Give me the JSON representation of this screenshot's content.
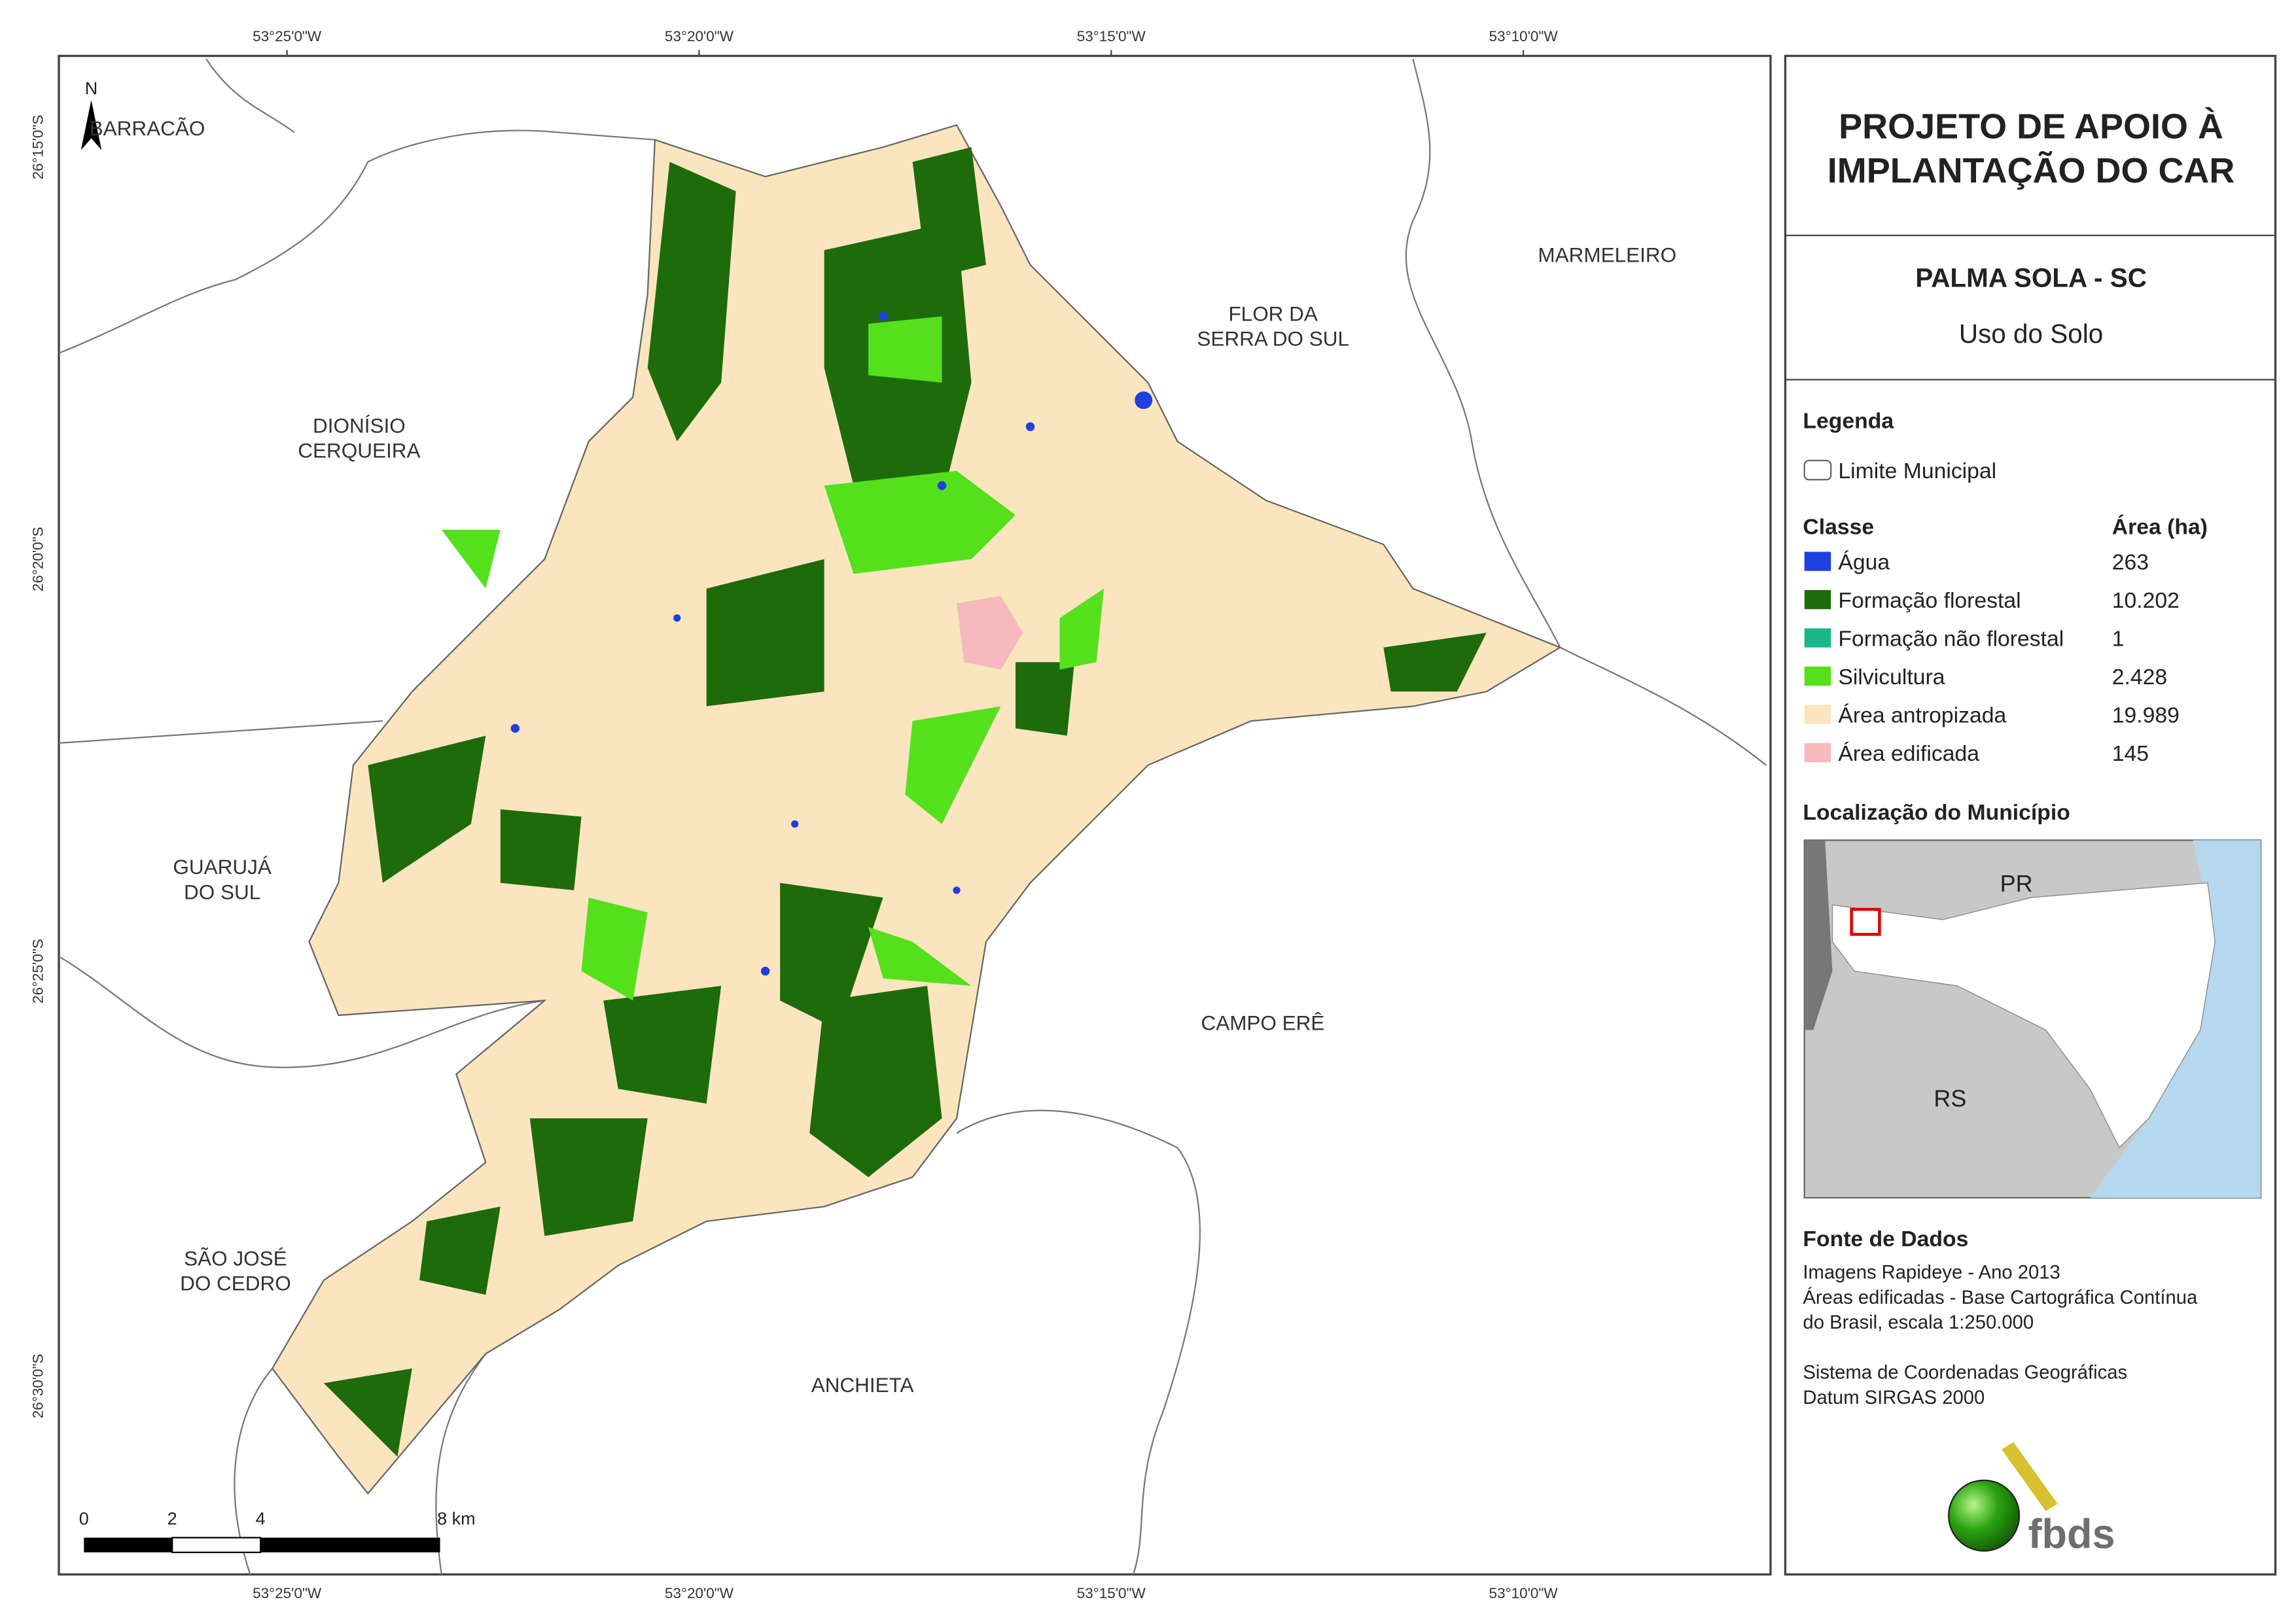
{
  "header": {
    "title_line1": "PROJETO DE APOIO À",
    "title_line2": "IMPLANTAÇÃO DO CAR",
    "municipality": "PALMA SOLA - SC",
    "theme": "Uso do Solo"
  },
  "legend": {
    "title": "Legenda",
    "boundary": "Limite Municipal",
    "class_header": "Classe",
    "area_header": "Área (ha)",
    "items": [
      {
        "name": "Água",
        "area": "263",
        "color": "#1f3fe0"
      },
      {
        "name": "Formação florestal",
        "area": "10.202",
        "color": "#1e6b0c"
      },
      {
        "name": "Formação não florestal",
        "area": "1",
        "color": "#18b88a"
      },
      {
        "name": "Silvicultura",
        "area": "2.428",
        "color": "#55e01c"
      },
      {
        "name": "Área antropizada",
        "area": "19.989",
        "color": "#fbe5bf"
      },
      {
        "name": "Área edificada",
        "area": "145",
        "color": "#f6b9bd"
      }
    ]
  },
  "location": {
    "title": "Localização do Município",
    "labels": [
      "PR",
      "RS"
    ]
  },
  "sources": {
    "title": "Fonte de Dados",
    "lines": [
      "Imagens Rapideye - Ano 2013",
      "Áreas edificadas - Base Cartográfica Contínua",
      "do Brasil, escala 1:250.000",
      "",
      "Sistema de Coordenadas Geográficas",
      "Datum SIRGAS 2000"
    ]
  },
  "logo": "fbds",
  "map": {
    "north": "N",
    "lon_labels": [
      "53°25'0\"W",
      "53°20'0\"W",
      "53°15'0\"W",
      "53°10'0\"W"
    ],
    "lat_labels": [
      "26°15'0\"S",
      "26°20'0\"S",
      "26°25'0\"S",
      "26°30'0\"S"
    ],
    "neighbors": [
      [
        "BARRACÃO"
      ],
      [
        "MARMELEIRO"
      ],
      [
        "FLOR DA",
        "SERRA DO SUL"
      ],
      [
        "DIONÍSIO",
        "CERQUEIRA"
      ],
      [
        "GUARUJÁ",
        "DO SUL"
      ],
      [
        "CAMPO ERÊ"
      ],
      [
        "SÃO JOSÉ",
        "DO CEDRO"
      ],
      [
        "ANCHIETA"
      ]
    ],
    "scale": {
      "labels": [
        "0",
        "2",
        "4",
        "8 km"
      ]
    }
  }
}
